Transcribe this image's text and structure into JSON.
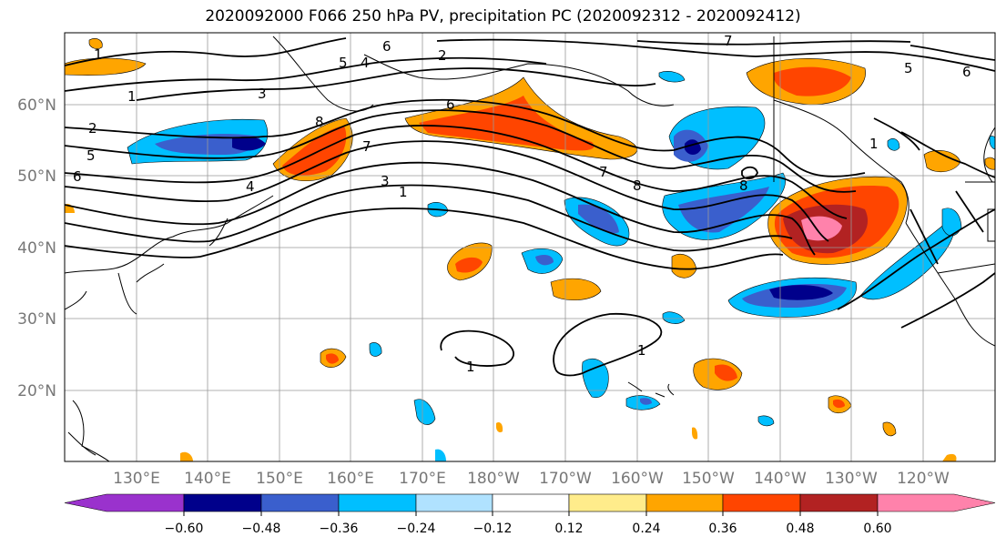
{
  "title": "2020092000 F066 250 hPa PV, precipitation PC (2020092312 - 2020092412)",
  "map": {
    "lat_labels": [
      "60°N",
      "50°N",
      "40°N",
      "30°N",
      "20°N"
    ],
    "lon_labels": [
      "130°E",
      "140°E",
      "150°E",
      "160°E",
      "170°E",
      "180°W",
      "170°W",
      "160°W",
      "150°W",
      "140°W",
      "130°W",
      "120°W"
    ],
    "contour_labels": [
      "1",
      "5",
      "4",
      "6",
      "2",
      "7",
      "5",
      "6",
      "1",
      "3",
      "2",
      "5",
      "6",
      "4",
      "8",
      "7",
      "6",
      "7",
      "8",
      "3",
      "1",
      "8",
      "1",
      "1",
      "1"
    ]
  },
  "colorbar": {
    "colors": [
      "#9a32cd",
      "#00008b",
      "#3a5fcd",
      "#00bfff",
      "#b0e2ff",
      "#ffffff",
      "#ffec8b",
      "#ffa500",
      "#ff4500",
      "#b22222",
      "#ff82ab"
    ],
    "tick_labels": [
      "−0.60",
      "−0.48",
      "−0.36",
      "−0.24",
      "−0.12",
      "0.12",
      "0.24",
      "0.36",
      "0.48",
      "0.60"
    ]
  }
}
